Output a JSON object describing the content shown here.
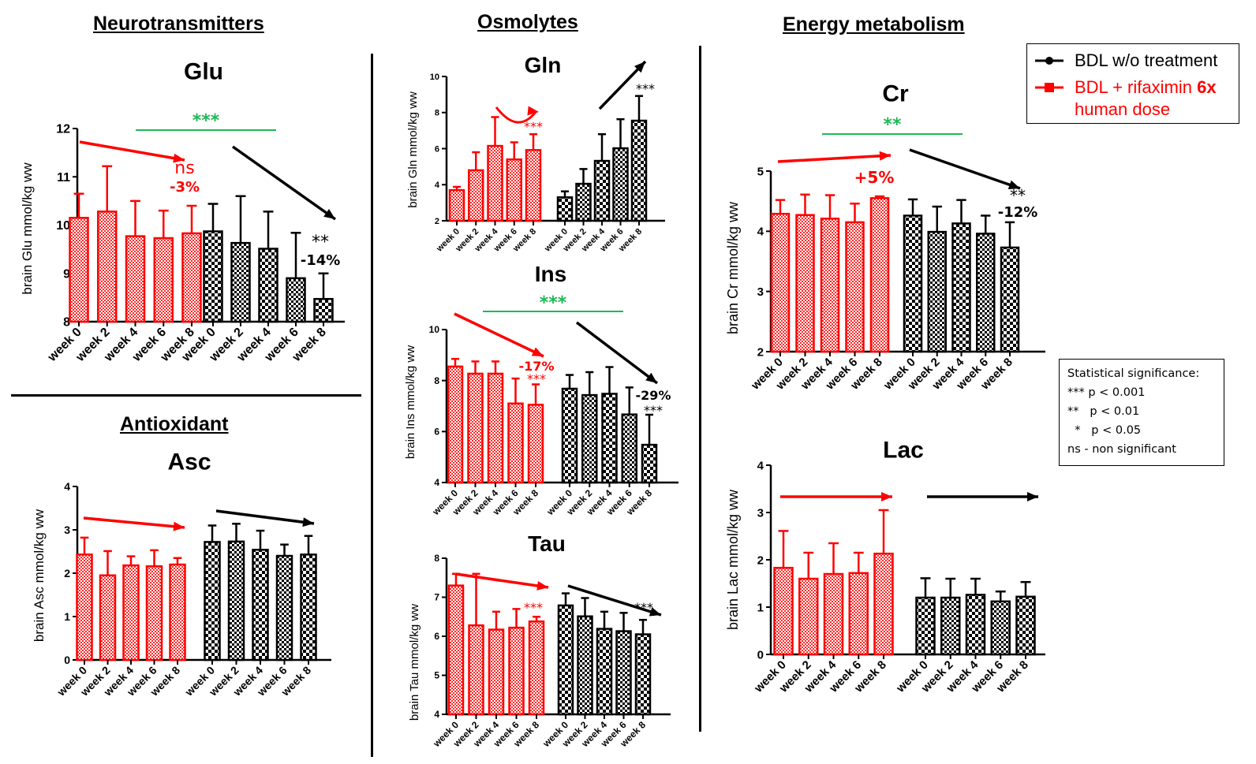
{
  "sections": {
    "neuro": "Neurotransmitters",
    "osmo": "Osmolytes",
    "energy": "Energy metabolism",
    "antiox": "Antioxidant"
  },
  "legend": {
    "series": [
      {
        "name": "BDL w/o treatment",
        "color": "#000000",
        "marker": "circle"
      },
      {
        "name_part1": "BDL + rifaximin ",
        "name_bold": "6x",
        "name_line2": "human dose",
        "color": "#ff0000",
        "marker": "square"
      }
    ]
  },
  "significance_legend": {
    "title": "Statistical significance:",
    "lines": [
      "*** p < 0.001",
      "**   p < 0.01",
      "  *   p < 0.05",
      "ns - non significant"
    ]
  },
  "colors": {
    "treated": "#ff0000",
    "untreated": "#000000",
    "group_compare": "#1db954"
  },
  "chart_data": [
    {
      "id": "glu",
      "type": "bar",
      "title": "Glu",
      "ylabel": "brain Glu mmol/kg ww",
      "ylim": [
        8,
        12
      ],
      "yticks": [
        8,
        9,
        10,
        11,
        12
      ],
      "categories": [
        "week 0",
        "week 2",
        "week 4",
        "week 6",
        "week 8"
      ],
      "series": [
        {
          "name": "BDL + rifaximin 6x human dose",
          "values": [
            10.15,
            10.28,
            9.77,
            9.73,
            9.83
          ],
          "error_top": [
            10.65,
            11.22,
            10.5,
            10.3,
            10.4
          ],
          "trend": "down",
          "annotation": [
            "ns",
            "-3%"
          ]
        },
        {
          "name": "BDL w/o treatment",
          "values": [
            9.87,
            9.63,
            9.51,
            8.9,
            8.47
          ],
          "error_top": [
            10.44,
            10.6,
            10.28,
            9.84,
            9.0
          ],
          "trend": "down",
          "annotation": [
            "**",
            "-14%"
          ]
        }
      ],
      "group_significance": "***"
    },
    {
      "id": "asc",
      "type": "bar",
      "title": "Asc",
      "ylabel": "brain Asc mmol/kg ww",
      "ylim": [
        0,
        4
      ],
      "yticks": [
        0,
        1,
        2,
        3,
        4
      ],
      "categories": [
        "week 0",
        "week 2",
        "week 4",
        "week 6",
        "week 8"
      ],
      "series": [
        {
          "name": "BDL + rifaximin 6x human dose",
          "values": [
            2.43,
            1.95,
            2.18,
            2.16,
            2.2
          ],
          "error_top": [
            2.82,
            2.51,
            2.39,
            2.53,
            2.35
          ],
          "trend": "slight-down",
          "annotation": []
        },
        {
          "name": "BDL w/o treatment",
          "values": [
            2.72,
            2.73,
            2.54,
            2.4,
            2.43
          ],
          "error_top": [
            3.1,
            3.14,
            2.98,
            2.66,
            2.86
          ],
          "trend": "slight-down",
          "annotation": []
        }
      ],
      "group_significance": ""
    },
    {
      "id": "gln",
      "type": "bar",
      "title": "Gln",
      "ylabel": "brain Gln mmol/kg ww",
      "ylim": [
        2,
        10
      ],
      "yticks": [
        2,
        4,
        6,
        8,
        10
      ],
      "categories": [
        "week 0",
        "week 2",
        "week 4",
        "week 6",
        "week 8"
      ],
      "series": [
        {
          "name": "BDL + rifaximin 6x human dose",
          "values": [
            3.7,
            4.8,
            6.15,
            5.4,
            5.92
          ],
          "error_top": [
            3.88,
            5.8,
            7.75,
            6.35,
            6.8
          ],
          "trend": "curve",
          "annotation": [
            "***"
          ]
        },
        {
          "name": "BDL w/o treatment",
          "values": [
            3.3,
            4.05,
            5.32,
            6.02,
            7.55
          ],
          "error_top": [
            3.63,
            4.87,
            6.8,
            7.63,
            8.92
          ],
          "trend": "up",
          "annotation": [
            "***"
          ]
        }
      ],
      "group_significance": ""
    },
    {
      "id": "ins",
      "type": "bar",
      "title": "Ins",
      "ylabel": "brain Ins mmol/kg ww",
      "ylim": [
        4,
        10
      ],
      "yticks": [
        4,
        6,
        8,
        10
      ],
      "categories": [
        "week 0",
        "week 2",
        "week 4",
        "week 6",
        "week 8"
      ],
      "series": [
        {
          "name": "BDL + rifaximin 6x human dose",
          "values": [
            8.55,
            8.27,
            8.27,
            7.1,
            7.05
          ],
          "error_top": [
            8.85,
            8.75,
            8.75,
            8.08,
            7.85
          ],
          "trend": "down",
          "annotation": [
            "-17%",
            "***"
          ]
        },
        {
          "name": "BDL w/o treatment",
          "values": [
            7.68,
            7.43,
            7.48,
            6.67,
            5.48
          ],
          "error_top": [
            8.22,
            8.33,
            8.53,
            7.73,
            6.66
          ],
          "trend": "down",
          "annotation": [
            "-29%",
            "***"
          ]
        }
      ],
      "group_significance": "***"
    },
    {
      "id": "tau",
      "type": "bar",
      "title": "Tau",
      "ylabel": "brain Tau mmol/kg ww",
      "ylim": [
        4,
        8
      ],
      "yticks": [
        4,
        5,
        6,
        7,
        8
      ],
      "categories": [
        "week 0",
        "week 2",
        "week 4",
        "week 6",
        "week 8"
      ],
      "series": [
        {
          "name": "BDL + rifaximin 6x human dose",
          "values": [
            7.3,
            6.28,
            6.17,
            6.22,
            6.38
          ],
          "error_top": [
            7.6,
            7.6,
            6.63,
            6.7,
            6.5
          ],
          "trend": "down",
          "annotation": [
            "***"
          ]
        },
        {
          "name": "BDL w/o treatment",
          "values": [
            6.79,
            6.51,
            6.19,
            6.13,
            6.05
          ],
          "error_top": [
            7.1,
            6.98,
            6.63,
            6.6,
            6.42
          ],
          "trend": "down",
          "annotation": [
            "***"
          ]
        }
      ],
      "group_significance": ""
    },
    {
      "id": "cr",
      "type": "bar",
      "title": "Cr",
      "ylabel": "brain Cr mmol/kg ww",
      "ylim": [
        2,
        5
      ],
      "yticks": [
        2,
        3,
        4,
        5
      ],
      "categories": [
        "week 0",
        "week 2",
        "week 4",
        "week 6",
        "week 8"
      ],
      "series": [
        {
          "name": "BDL + rifaximin 6x human dose",
          "values": [
            4.29,
            4.27,
            4.21,
            4.15,
            4.55
          ],
          "error_top": [
            4.52,
            4.61,
            4.6,
            4.46,
            4.58
          ],
          "trend": "slight-up",
          "annotation": [
            "+5%"
          ]
        },
        {
          "name": "BDL w/o treatment",
          "values": [
            4.26,
            3.99,
            4.13,
            3.96,
            3.73
          ],
          "error_top": [
            4.53,
            4.41,
            4.52,
            4.26,
            4.15
          ],
          "trend": "down",
          "annotation": [
            "**",
            "-12%"
          ]
        }
      ],
      "group_significance": "**"
    },
    {
      "id": "lac",
      "type": "bar",
      "title": "Lac",
      "ylabel": "brain Lac mmol/kg ww",
      "ylim": [
        0,
        4
      ],
      "yticks": [
        0,
        1,
        2,
        3,
        4
      ],
      "categories": [
        "week 0",
        "week 2",
        "week 4",
        "week 6",
        "week 8"
      ],
      "series": [
        {
          "name": "BDL + rifaximin 6x human dose",
          "values": [
            1.83,
            1.6,
            1.7,
            1.72,
            2.13
          ],
          "error_top": [
            2.61,
            2.15,
            2.35,
            2.15,
            3.05
          ],
          "trend": "flat",
          "annotation": []
        },
        {
          "name": "BDL w/o treatment",
          "values": [
            1.2,
            1.2,
            1.26,
            1.12,
            1.22
          ],
          "error_top": [
            1.61,
            1.6,
            1.6,
            1.33,
            1.53
          ],
          "trend": "flat",
          "annotation": []
        }
      ],
      "group_significance": ""
    }
  ]
}
